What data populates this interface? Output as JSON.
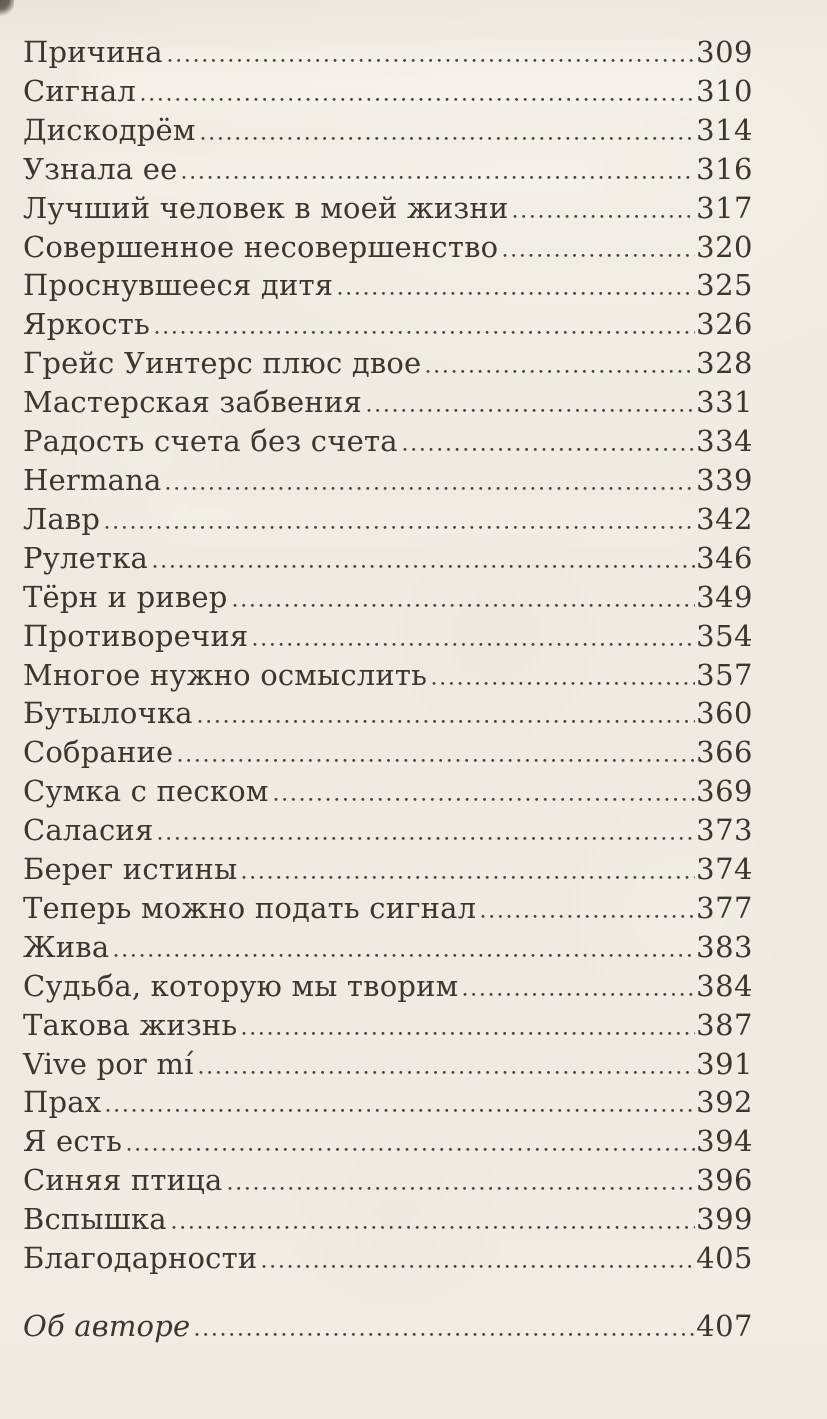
{
  "page": {
    "paper_color": "#f0eae1",
    "ink_color": "#3d362e"
  },
  "toc": {
    "entries": [
      {
        "title": "Причина",
        "page": "309"
      },
      {
        "title": "Сигнал",
        "page": "310"
      },
      {
        "title": "Дискодрём",
        "page": "314"
      },
      {
        "title": "Узнала ее",
        "page": "316"
      },
      {
        "title": "Лучший человек в моей жизни",
        "page": "317"
      },
      {
        "title": "Совершенное несовершенство",
        "page": "320"
      },
      {
        "title": "Проснувшееся дитя",
        "page": "325"
      },
      {
        "title": "Яркость",
        "page": "326"
      },
      {
        "title": "Грейс Уинтерс плюс двое",
        "page": "328"
      },
      {
        "title": "Мастерская забвения",
        "page": "331"
      },
      {
        "title": "Радость счета без счета",
        "page": "334"
      },
      {
        "title": "Hermana",
        "page": "339"
      },
      {
        "title": "Лавр",
        "page": "342"
      },
      {
        "title": "Рулетка",
        "page": "346"
      },
      {
        "title": "Тёрн и ривер",
        "page": "349"
      },
      {
        "title": "Противоречия",
        "page": "354"
      },
      {
        "title": "Многое нужно осмыслить",
        "page": "357"
      },
      {
        "title": "Бутылочка",
        "page": "360"
      },
      {
        "title": "Собрание",
        "page": "366"
      },
      {
        "title": "Сумка с песком",
        "page": "369"
      },
      {
        "title": "Саласия",
        "page": "373"
      },
      {
        "title": "Берег истины",
        "page": "374"
      },
      {
        "title": "Теперь можно подать сигнал",
        "page": "377"
      },
      {
        "title": "Жива",
        "page": "383"
      },
      {
        "title": "Судьба, которую мы творим",
        "page": "384"
      },
      {
        "title": "Такова жизнь",
        "page": "387"
      },
      {
        "title": "Vive por mí",
        "page": "391"
      },
      {
        "title": "Прах",
        "page": "392"
      },
      {
        "title": "Я есть",
        "page": "394"
      },
      {
        "title": "Синяя птица",
        "page": "396"
      },
      {
        "title": "Вспышка",
        "page": "399"
      },
      {
        "title": "Благодарности",
        "page": "405"
      }
    ],
    "about": {
      "title": "Об авторе",
      "page": "407"
    }
  }
}
